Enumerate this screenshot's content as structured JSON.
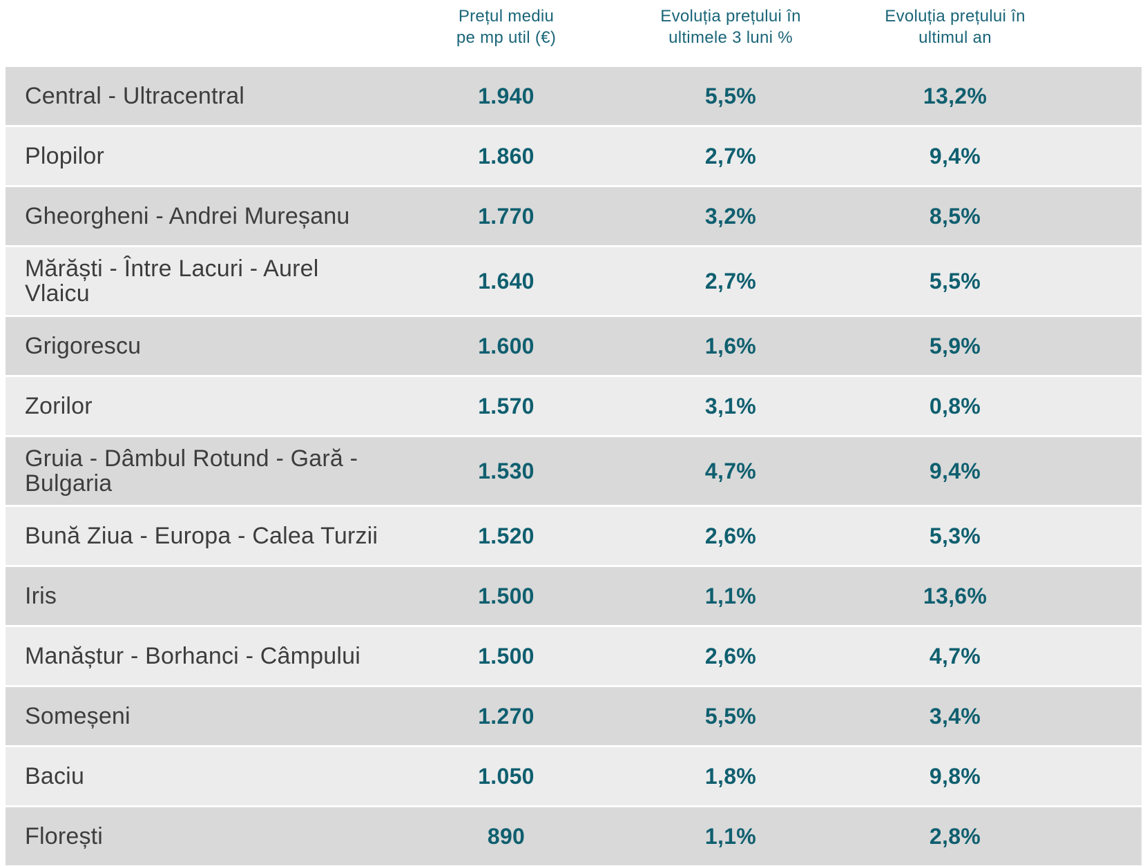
{
  "chart_data": {
    "type": "table",
    "header": {
      "neighborhood": "",
      "price": "Prețul mediu\npe mp util (€)",
      "change_3m": "Evoluția prețului în\nultimele 3 luni %",
      "change_1y": "Evoluția prețului în\nultimul an"
    },
    "rows": [
      {
        "neighborhood": "Central - Ultracentral",
        "display_name": "Central - Ultracentral",
        "price_eur_mp": "1.940",
        "change_3m_pct": "5,5%",
        "change_1y_pct": "13,2%"
      },
      {
        "neighborhood": "Plopilor",
        "display_name": "Plopilor",
        "price_eur_mp": "1.860",
        "change_3m_pct": "2,7%",
        "change_1y_pct": "9,4%"
      },
      {
        "neighborhood": "Gheorgheni - Andrei Mureșanu",
        "display_name": "Gheorgheni - Andrei Mureșanu",
        "price_eur_mp": "1.770",
        "change_3m_pct": "3,2%",
        "change_1y_pct": "8,5%"
      },
      {
        "neighborhood": "Mărăști - Între Lacuri - Aurel Vlaicu",
        "display_name": "Mărăști - Între Lacuri - Aurel\nVlaicu",
        "price_eur_mp": "1.640",
        "change_3m_pct": "2,7%",
        "change_1y_pct": "5,5%"
      },
      {
        "neighborhood": "Grigorescu",
        "display_name": "Grigorescu",
        "price_eur_mp": "1.600",
        "change_3m_pct": "1,6%",
        "change_1y_pct": "5,9%"
      },
      {
        "neighborhood": "Zorilor",
        "display_name": "Zorilor",
        "price_eur_mp": "1.570",
        "change_3m_pct": "3,1%",
        "change_1y_pct": "0,8%"
      },
      {
        "neighborhood": "Gruia - Dâmbul Rotund - Gară - Bulgaria",
        "display_name": "Gruia - Dâmbul Rotund - Gară -\nBulgaria",
        "price_eur_mp": "1.530",
        "change_3m_pct": "4,7%",
        "change_1y_pct": "9,4%"
      },
      {
        "neighborhood": "Bună Ziua - Europa - Calea Turzii",
        "display_name": "Bună Ziua - Europa - Calea Turzii",
        "price_eur_mp": "1.520",
        "change_3m_pct": "2,6%",
        "change_1y_pct": "5,3%"
      },
      {
        "neighborhood": "Iris",
        "display_name": "Iris",
        "price_eur_mp": "1.500",
        "change_3m_pct": "1,1%",
        "change_1y_pct": "13,6%"
      },
      {
        "neighborhood": "Manăștur - Borhanci - Câmpului",
        "display_name": "Manăștur - Borhanci - Câmpului",
        "price_eur_mp": "1.500",
        "change_3m_pct": "2,6%",
        "change_1y_pct": "4,7%"
      },
      {
        "neighborhood": "Someșeni",
        "display_name": "Someșeni",
        "price_eur_mp": "1.270",
        "change_3m_pct": "5,5%",
        "change_1y_pct": "3,4%"
      },
      {
        "neighborhood": "Baciu",
        "display_name": "Baciu",
        "price_eur_mp": "1.050",
        "change_3m_pct": "1,8%",
        "change_1y_pct": "9,8%"
      },
      {
        "neighborhood": "Florești",
        "display_name": "Florești",
        "price_eur_mp": "890",
        "change_3m_pct": "1,1%",
        "change_1y_pct": "2,8%"
      }
    ]
  },
  "colors": {
    "background": "#ffffff",
    "header_text": "#1a6578",
    "value_text": "#0f5f6f",
    "name_text": "#3d3d3d",
    "row_dark": "#d9d9d9",
    "row_light": "#ececec"
  }
}
